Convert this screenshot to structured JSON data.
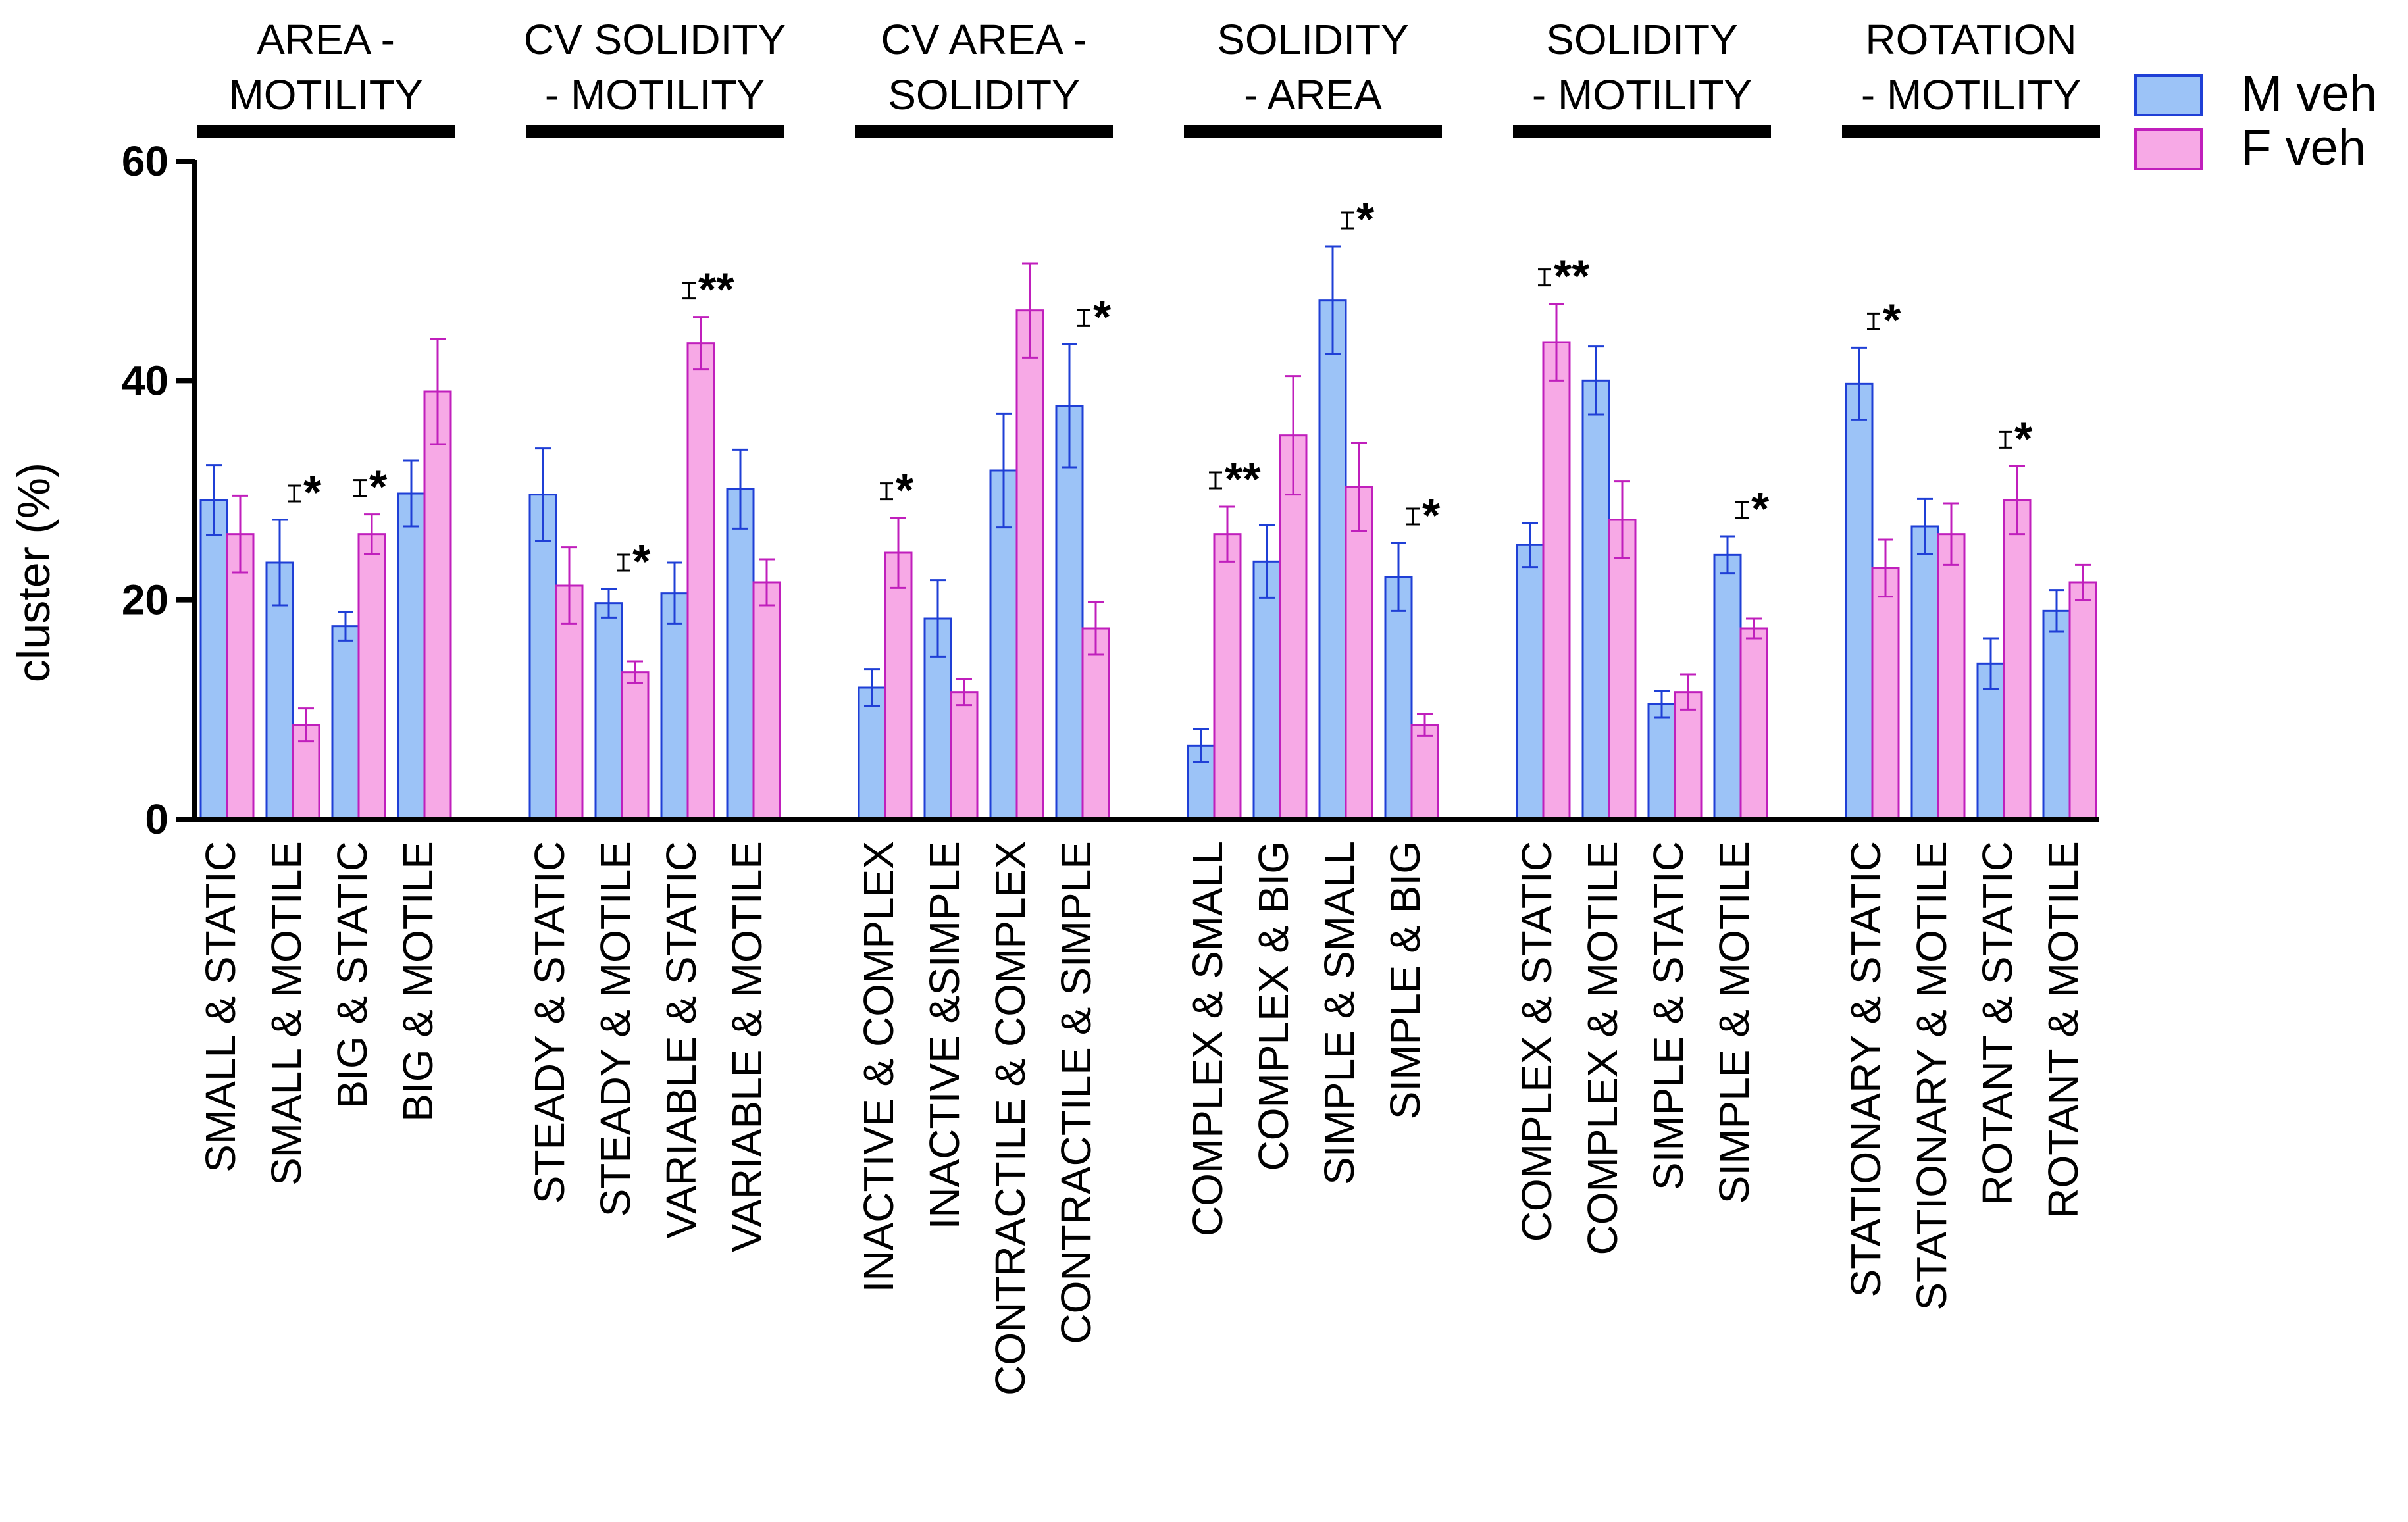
{
  "chart_data": {
    "type": "bar",
    "ylabel": "cluster (%)",
    "ylim": [
      0,
      60
    ],
    "yticks": [
      0,
      20,
      40,
      60
    ],
    "legend_position": "top-right",
    "series": [
      {
        "name": "M veh",
        "fill": "#9cc3f7",
        "stroke": "#1f3fd6"
      },
      {
        "name": "F veh",
        "fill": "#f7a9e6",
        "stroke": "#c01fbc"
      }
    ],
    "groups": [
      {
        "title_lines": [
          "AREA -",
          "MOTILITY"
        ],
        "categories": [
          {
            "label": "SMALL & STATIC",
            "m": 29.1,
            "m_err": 3.2,
            "f": 26.0,
            "f_err": 3.5,
            "sig": ""
          },
          {
            "label": "SMALL & MOTILE",
            "m": 23.4,
            "m_err": 3.9,
            "f": 8.6,
            "f_err": 1.5,
            "sig": "*"
          },
          {
            "label": "BIG & STATIC",
            "m": 17.6,
            "m_err": 1.3,
            "f": 26.0,
            "f_err": 1.8,
            "sig": "*"
          },
          {
            "label": "BIG & MOTILE",
            "m": 29.7,
            "m_err": 3.0,
            "f": 39.0,
            "f_err": 4.8,
            "sig": ""
          }
        ]
      },
      {
        "title_lines": [
          "CV SOLIDITY",
          "- MOTILITY"
        ],
        "categories": [
          {
            "label": "STEADY & STATIC",
            "m": 29.6,
            "m_err": 4.2,
            "f": 21.3,
            "f_err": 3.5,
            "sig": ""
          },
          {
            "label": "STEADY & MOTILE",
            "m": 19.7,
            "m_err": 1.3,
            "f": 13.4,
            "f_err": 1.0,
            "sig": "*"
          },
          {
            "label": "VARIABLE & STATIC",
            "m": 20.6,
            "m_err": 2.8,
            "f": 43.4,
            "f_err": 2.4,
            "sig": "**"
          },
          {
            "label": "VARIABLE & MOTILE",
            "m": 30.1,
            "m_err": 3.6,
            "f": 21.6,
            "f_err": 2.1,
            "sig": ""
          }
        ]
      },
      {
        "title_lines": [
          "CV AREA -",
          "SOLIDITY"
        ],
        "categories": [
          {
            "label": "INACTIVE & COMPLEX",
            "m": 12.0,
            "m_err": 1.7,
            "f": 24.3,
            "f_err": 3.2,
            "sig": "*"
          },
          {
            "label": "INACTIVE &SIMPLE",
            "m": 18.3,
            "m_err": 3.5,
            "f": 11.6,
            "f_err": 1.2,
            "sig": ""
          },
          {
            "label": "CONTRACTILE & COMPLEX",
            "m": 31.8,
            "m_err": 5.2,
            "f": 46.4,
            "f_err": 4.3,
            "sig": ""
          },
          {
            "label": "CONTRACTILE & SIMPLE",
            "m": 37.7,
            "m_err": 5.6,
            "f": 17.4,
            "f_err": 2.4,
            "sig": "*"
          }
        ]
      },
      {
        "title_lines": [
          "SOLIDITY",
          "- AREA"
        ],
        "categories": [
          {
            "label": "COMPLEX & SMALL",
            "m": 6.7,
            "m_err": 1.5,
            "f": 26.0,
            "f_err": 2.5,
            "sig": "**"
          },
          {
            "label": "COMPLEX & BIG",
            "m": 23.5,
            "m_err": 3.3,
            "f": 35.0,
            "f_err": 5.4,
            "sig": ""
          },
          {
            "label": "SIMPLE & SMALL",
            "m": 47.3,
            "m_err": 4.9,
            "f": 30.3,
            "f_err": 4.0,
            "sig": "*"
          },
          {
            "label": "SIMPLE & BIG",
            "m": 22.1,
            "m_err": 3.1,
            "f": 8.6,
            "f_err": 1.0,
            "sig": "*"
          }
        ]
      },
      {
        "title_lines": [
          "SOLIDITY",
          "- MOTILITY"
        ],
        "categories": [
          {
            "label": "COMPLEX & STATIC",
            "m": 25.0,
            "m_err": 2.0,
            "f": 43.5,
            "f_err": 3.5,
            "sig": "**"
          },
          {
            "label": "COMPLEX & MOTILE",
            "m": 40.0,
            "m_err": 3.1,
            "f": 27.3,
            "f_err": 3.5,
            "sig": ""
          },
          {
            "label": "SIMPLE & STATIC",
            "m": 10.5,
            "m_err": 1.2,
            "f": 11.6,
            "f_err": 1.6,
            "sig": ""
          },
          {
            "label": "SIMPLE & MOTILE",
            "m": 24.1,
            "m_err": 1.7,
            "f": 17.4,
            "f_err": 0.9,
            "sig": "*"
          }
        ]
      },
      {
        "title_lines": [
          "ROTATION",
          "- MOTILITY"
        ],
        "categories": [
          {
            "label": "STATIONARY & STATIC",
            "m": 39.7,
            "m_err": 3.3,
            "f": 22.9,
            "f_err": 2.6,
            "sig": "*"
          },
          {
            "label": "STATIONARY & MOTILE",
            "m": 26.7,
            "m_err": 2.5,
            "f": 26.0,
            "f_err": 2.8,
            "sig": ""
          },
          {
            "label": "ROTANT & STATIC",
            "m": 14.2,
            "m_err": 2.3,
            "f": 29.1,
            "f_err": 3.1,
            "sig": "*"
          },
          {
            "label": "ROTANT & MOTILE",
            "m": 19.0,
            "m_err": 1.9,
            "f": 21.6,
            "f_err": 1.6,
            "sig": ""
          }
        ]
      }
    ]
  }
}
